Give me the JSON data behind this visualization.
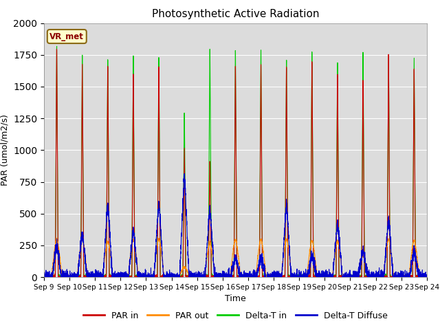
{
  "title": "Photosynthetic Active Radiation",
  "ylabel": "PAR (umol/m2/s)",
  "xlabel": "Time",
  "legend_label": "VR_met",
  "ylim": [
    0,
    2000
  ],
  "background_color": "#dcdcdc",
  "series": {
    "par_in_color": "#cc0000",
    "par_out_color": "#ff8c00",
    "delta_t_in_color": "#00cc00",
    "delta_t_diffuse_color": "#0000cc"
  },
  "x_ticks": [
    "Sep 9",
    "Sep 10",
    "Sep 11",
    "Sep 12",
    "Sep 13",
    "Sep 14",
    "Sep 15",
    "Sep 16",
    "Sep 17",
    "Sep 18",
    "Sep 19",
    "Sep 20",
    "Sep 21",
    "Sep 22",
    "Sep 23",
    "Sep 24"
  ],
  "num_days": 15,
  "legend_entries": [
    "PAR in",
    "PAR out",
    "Delta-T in",
    "Delta-T Diffuse"
  ],
  "par_in_peaks": [
    1850,
    1720,
    1700,
    1650,
    1700,
    1050,
    950,
    1720,
    1720,
    1700,
    1750,
    1650,
    1600,
    1800,
    1700
  ],
  "par_out_peaks": [
    300,
    300,
    280,
    300,
    300,
    80,
    270,
    300,
    300,
    300,
    290,
    290,
    170,
    300,
    290
  ],
  "delta_t_in_peaks": [
    1870,
    1800,
    1760,
    1760,
    1780,
    1330,
    1850,
    1840,
    1840,
    1750,
    1810,
    1740,
    1800,
    1780,
    1760
  ],
  "delta_t_diffuse_peaks": [
    250,
    350,
    570,
    370,
    580,
    800,
    540,
    155,
    155,
    560,
    165,
    425,
    205,
    455,
    200
  ]
}
